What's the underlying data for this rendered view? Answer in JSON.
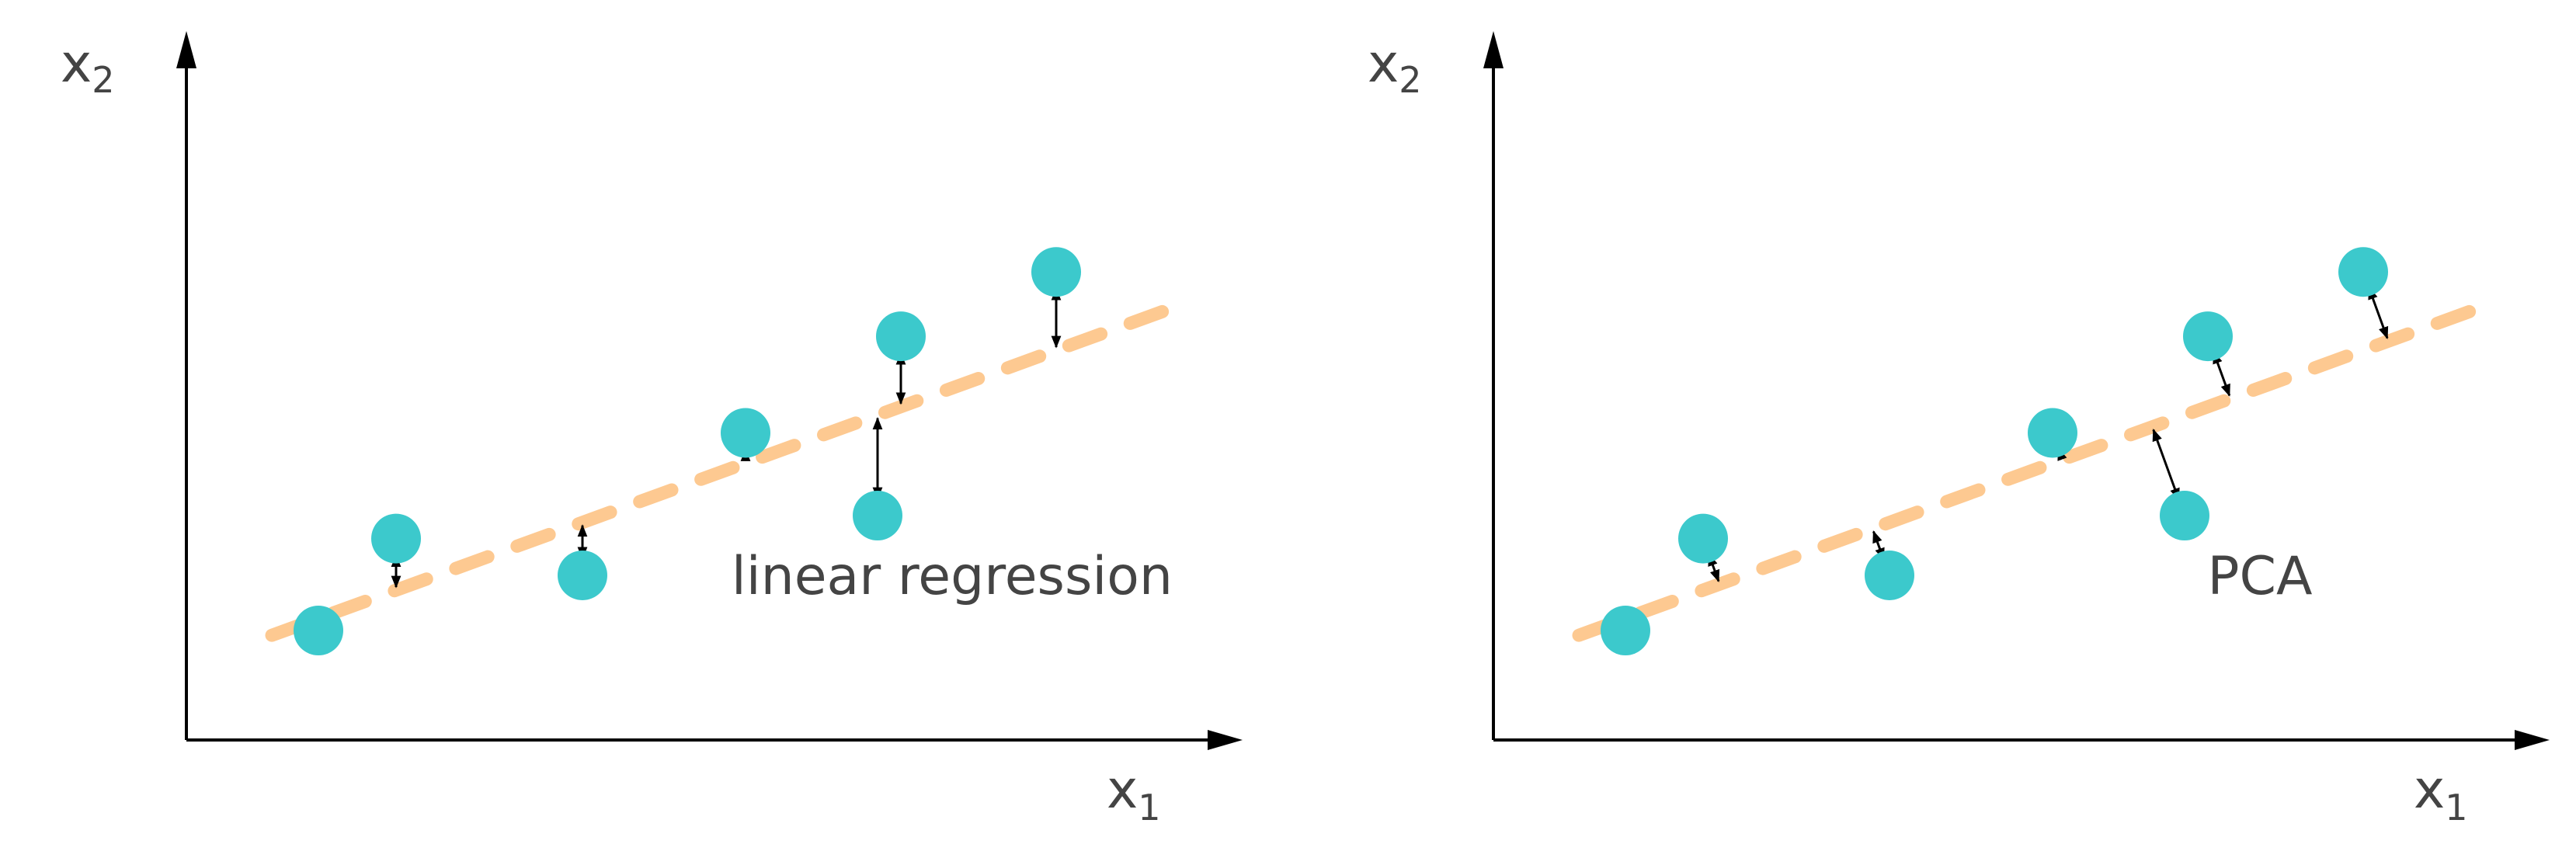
{
  "colors": {
    "axis": "#000000",
    "text": "#444444",
    "point": "#3cc9cc",
    "fit_line": "#fdc991",
    "arrow": "#000000"
  },
  "panels": [
    {
      "id": "linear-regression",
      "caption": "linear regression",
      "x_axis_label": "x",
      "x_axis_subscript": "1",
      "y_axis_label": "x",
      "y_axis_subscript": "2",
      "residual_direction": "vertical",
      "points": [
        [
          0,
          0
        ],
        [
          1,
          2
        ],
        [
          3.4,
          1.2
        ],
        [
          5.5,
          4.3
        ],
        [
          7.2,
          2.5
        ],
        [
          7.5,
          6.4
        ],
        [
          9.5,
          7.8
        ]
      ],
      "fit_line": {
        "x_start": -0.6,
        "x_end": 11.0,
        "slope": 0.614,
        "intercept": 0.264
      }
    },
    {
      "id": "pca",
      "caption": "PCA",
      "x_axis_label": "x",
      "x_axis_subscript": "1",
      "y_axis_label": "x",
      "y_axis_subscript": "2",
      "residual_direction": "perpendicular",
      "points": [
        [
          0,
          0
        ],
        [
          1,
          2
        ],
        [
          3.4,
          1.2
        ],
        [
          5.5,
          4.3
        ],
        [
          7.2,
          2.5
        ],
        [
          7.5,
          6.4
        ],
        [
          9.5,
          7.8
        ]
      ],
      "fit_line": {
        "x_start": -0.6,
        "x_end": 11.0,
        "slope": 0.614,
        "intercept": 0.264
      }
    }
  ]
}
